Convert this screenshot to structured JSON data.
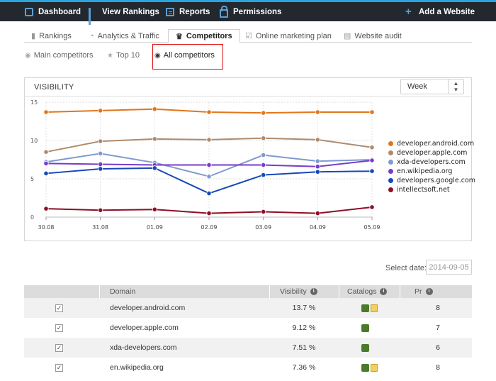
{
  "topnav": {
    "dashboard": "Dashboard",
    "view_rankings": "View Rankings",
    "reports": "Reports",
    "permissions": "Permissions",
    "add_website": "Add a Website"
  },
  "tabs": [
    "Rankings",
    "Analytics & Traffic",
    "Competitors",
    "Online marketing plan",
    "Website audit"
  ],
  "subtabs": [
    "Main competitors",
    "Top 10",
    "All competitors"
  ],
  "panel": {
    "title": "VISIBILITY",
    "period": "Week"
  },
  "chart_data": {
    "type": "line",
    "title": "VISIBILITY",
    "x": [
      "30.08",
      "31.08",
      "01.09",
      "02.09",
      "03.09",
      "04.09",
      "05.09"
    ],
    "ylim": [
      0,
      15
    ],
    "yticks": [
      "0",
      "5",
      "10",
      "15"
    ],
    "grid": true,
    "legend_position": "right",
    "series": [
      {
        "name": "developer.android.com",
        "color": "#e2761a",
        "values": [
          13.7,
          13.9,
          14.1,
          13.7,
          13.6,
          13.7,
          13.7
        ]
      },
      {
        "name": "developer.apple.com",
        "color": "#b08a6c",
        "values": [
          8.5,
          9.9,
          10.2,
          10.1,
          10.3,
          10.1,
          9.1
        ]
      },
      {
        "name": "xda-developers.com",
        "color": "#7f9ad0",
        "values": [
          7.2,
          8.3,
          7.1,
          5.3,
          8.1,
          7.3,
          7.5
        ]
      },
      {
        "name": "en.wikipedia.org",
        "color": "#7a3bc9",
        "values": [
          7.0,
          6.9,
          6.8,
          6.8,
          6.8,
          6.6,
          7.4
        ]
      },
      {
        "name": "developers.google.com",
        "color": "#1747b8",
        "values": [
          5.7,
          6.3,
          6.4,
          3.1,
          5.5,
          5.9,
          6.0
        ]
      },
      {
        "name": "intellectsoft.net",
        "color": "#8b1026",
        "values": [
          1.1,
          0.9,
          1.0,
          0.5,
          0.7,
          0.5,
          1.3
        ]
      }
    ]
  },
  "date": {
    "label": "Select date:",
    "value": "2014-09-05"
  },
  "table": {
    "headers": {
      "domain": "Domain",
      "visibility": "Visibility",
      "catalogs": "Catalogs",
      "pr": "Pr"
    },
    "rows": [
      {
        "domain": "developer.android.com",
        "visibility": "13.7 %",
        "pr": "8",
        "catalogs": 2
      },
      {
        "domain": "developer.apple.com",
        "visibility": "9.12 %",
        "pr": "7",
        "catalogs": 1
      },
      {
        "domain": "xda-developers.com",
        "visibility": "7.51 %",
        "pr": "6",
        "catalogs": 1
      },
      {
        "domain": "en.wikipedia.org",
        "visibility": "7.36 %",
        "pr": "8",
        "catalogs": 2
      }
    ]
  }
}
